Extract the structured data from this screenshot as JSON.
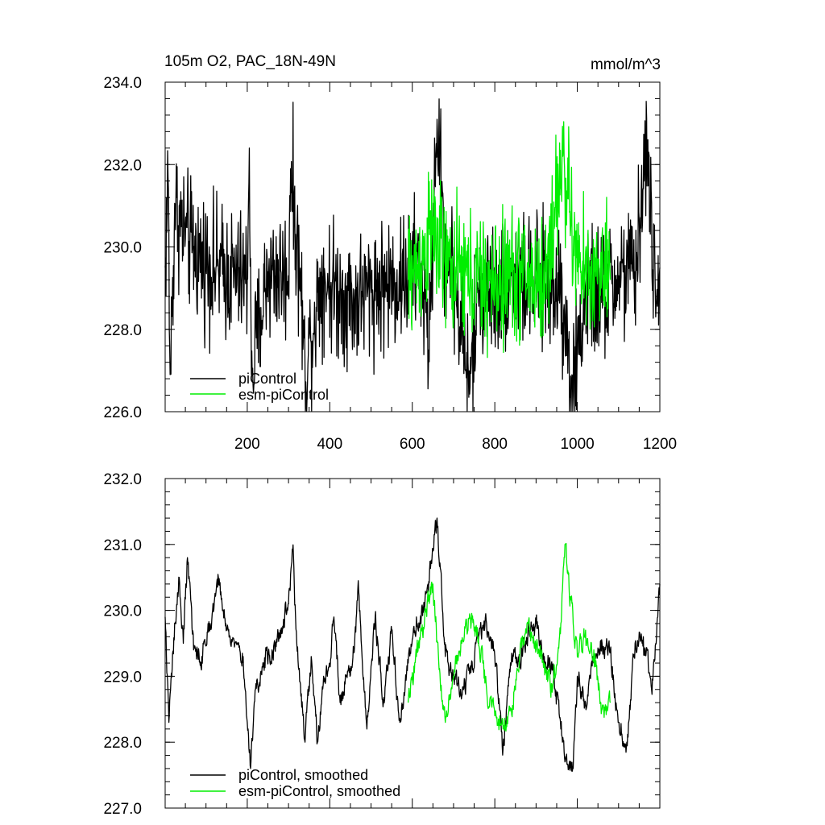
{
  "chart_data": [
    {
      "type": "line",
      "title": "105m O2, PAC_18N-49N",
      "units": "mmol/m^3",
      "xlim": [
        1,
        1200
      ],
      "ylim": [
        226.0,
        234.0
      ],
      "x_ticks": [
        200,
        400,
        600,
        800,
        1000,
        1200
      ],
      "x_tick_labels": [
        "200",
        "400",
        "600",
        "800",
        "1000",
        "1200"
      ],
      "y_ticks": [
        226.0,
        228.0,
        230.0,
        232.0,
        234.0
      ],
      "y_tick_labels": [
        "226.0",
        "228.0",
        "230.0",
        "232.0",
        "234.0"
      ],
      "legend": "bottom-left",
      "grid": false,
      "series": [
        {
          "name": "piControl",
          "color": "#000000",
          "x_start": 1,
          "x_end": 1200,
          "anchors": [
            [
              1,
              229.5
            ],
            [
              8,
              231.7
            ],
            [
              13,
              226.9
            ],
            [
              25,
              231.0
            ],
            [
              50,
              230.2
            ],
            [
              80,
              229.8
            ],
            [
              120,
              229.5
            ],
            [
              160,
              229.3
            ],
            [
              200,
              229.2
            ],
            [
              205,
              232.4
            ],
            [
              210,
              226.9
            ],
            [
              250,
              229.4
            ],
            [
              300,
              229.3
            ],
            [
              305,
              231.9
            ],
            [
              330,
              228.9
            ],
            [
              340,
              227.0
            ],
            [
              380,
              229.3
            ],
            [
              420,
              228.9
            ],
            [
              460,
              228.7
            ],
            [
              500,
              229.0
            ],
            [
              540,
              229.1
            ],
            [
              580,
              229.2
            ],
            [
              620,
              229.6
            ],
            [
              640,
              227.5
            ],
            [
              660,
              233.1
            ],
            [
              680,
              229.7
            ],
            [
              700,
              229.3
            ],
            [
              740,
              226.6
            ],
            [
              760,
              229.0
            ],
            [
              800,
              228.9
            ],
            [
              840,
              229.3
            ],
            [
              880,
              229.1
            ],
            [
              920,
              229.0
            ],
            [
              960,
              229.1
            ],
            [
              990,
              226.5
            ],
            [
              1020,
              228.9
            ],
            [
              1060,
              228.8
            ],
            [
              1100,
              229.3
            ],
            [
              1140,
              229.4
            ],
            [
              1170,
              232.6
            ],
            [
              1190,
              228.3
            ],
            [
              1200,
              229.5
            ]
          ]
        },
        {
          "name": "esm-piControl",
          "color": "#00ee00",
          "x_start": 590,
          "x_end": 1080,
          "anchors": [
            [
              590,
              229.2
            ],
            [
              620,
              229.6
            ],
            [
              650,
              230.4
            ],
            [
              680,
              229.5
            ],
            [
              720,
              229.3
            ],
            [
              760,
              229.2
            ],
            [
              800,
              229.0
            ],
            [
              840,
              229.4
            ],
            [
              880,
              229.3
            ],
            [
              920,
              229.1
            ],
            [
              965,
              232.2
            ],
            [
              1000,
              229.4
            ],
            [
              1040,
              229.4
            ],
            [
              1080,
              229.2
            ]
          ]
        }
      ]
    },
    {
      "type": "line",
      "title": "",
      "xlim": [
        1,
        1200
      ],
      "ylim": [
        227.0,
        232.0
      ],
      "x_ticks": [
        200,
        400,
        600,
        800,
        1000,
        1200
      ],
      "y_ticks": [
        227.0,
        228.0,
        229.0,
        230.0,
        231.0,
        232.0
      ],
      "y_tick_labels": [
        "227.0",
        "228.0",
        "229.0",
        "230.0",
        "231.0",
        "232.0"
      ],
      "legend": "bottom-left",
      "grid": false,
      "series": [
        {
          "name": "piControl, smoothed",
          "color": "#000000",
          "x_start": 1,
          "x_end": 1200,
          "anchors": [
            [
              1,
              229.9
            ],
            [
              10,
              228.3
            ],
            [
              25,
              229.8
            ],
            [
              35,
              230.5
            ],
            [
              45,
              229.5
            ],
            [
              55,
              230.8
            ],
            [
              70,
              229.4
            ],
            [
              90,
              229.3
            ],
            [
              110,
              229.8
            ],
            [
              130,
              230.5
            ],
            [
              150,
              229.7
            ],
            [
              170,
              229.5
            ],
            [
              190,
              229.3
            ],
            [
              200,
              228.3
            ],
            [
              208,
              227.6
            ],
            [
              220,
              228.8
            ],
            [
              240,
              229.2
            ],
            [
              260,
              229.4
            ],
            [
              280,
              229.7
            ],
            [
              300,
              230.1
            ],
            [
              310,
              230.9
            ],
            [
              320,
              229.5
            ],
            [
              330,
              228.7
            ],
            [
              340,
              228.0
            ],
            [
              355,
              229.3
            ],
            [
              370,
              228.0
            ],
            [
              385,
              229.0
            ],
            [
              400,
              229.2
            ],
            [
              410,
              229.9
            ],
            [
              425,
              228.6
            ],
            [
              440,
              229.0
            ],
            [
              455,
              229.2
            ],
            [
              470,
              230.3
            ],
            [
              490,
              228.2
            ],
            [
              510,
              229.9
            ],
            [
              530,
              228.6
            ],
            [
              550,
              229.7
            ],
            [
              570,
              228.3
            ],
            [
              590,
              229.2
            ],
            [
              610,
              229.9
            ],
            [
              630,
              230.0
            ],
            [
              650,
              230.9
            ],
            [
              660,
              231.4
            ],
            [
              680,
              229.3
            ],
            [
              700,
              229.0
            ],
            [
              720,
              228.7
            ],
            [
              740,
              229.1
            ],
            [
              760,
              229.5
            ],
            [
              780,
              229.8
            ],
            [
              800,
              229.3
            ],
            [
              820,
              227.9
            ],
            [
              840,
              229.2
            ],
            [
              860,
              229.3
            ],
            [
              880,
              229.6
            ],
            [
              900,
              229.8
            ],
            [
              920,
              229.3
            ],
            [
              940,
              229.1
            ],
            [
              960,
              228.2
            ],
            [
              970,
              227.7
            ],
            [
              990,
              227.6
            ],
            [
              1000,
              229.0
            ],
            [
              1020,
              228.6
            ],
            [
              1040,
              229.2
            ],
            [
              1060,
              229.5
            ],
            [
              1080,
              229.4
            ],
            [
              1100,
              228.3
            ],
            [
              1120,
              228.0
            ],
            [
              1140,
              229.5
            ],
            [
              1160,
              229.6
            ],
            [
              1180,
              228.8
            ],
            [
              1195,
              229.9
            ],
            [
              1200,
              230.4
            ]
          ]
        },
        {
          "name": "esm-piControl, smoothed",
          "color": "#00ee00",
          "x_start": 590,
          "x_end": 1080,
          "anchors": [
            [
              590,
              228.6
            ],
            [
              610,
              229.3
            ],
            [
              630,
              229.9
            ],
            [
              650,
              230.4
            ],
            [
              665,
              229.1
            ],
            [
              680,
              228.3
            ],
            [
              700,
              229.0
            ],
            [
              720,
              229.5
            ],
            [
              740,
              229.9
            ],
            [
              760,
              229.6
            ],
            [
              780,
              228.8
            ],
            [
              800,
              228.4
            ],
            [
              820,
              228.2
            ],
            [
              840,
              228.5
            ],
            [
              860,
              229.3
            ],
            [
              880,
              229.8
            ],
            [
              900,
              229.4
            ],
            [
              920,
              229.2
            ],
            [
              940,
              228.8
            ],
            [
              960,
              229.8
            ],
            [
              970,
              231.0
            ],
            [
              990,
              229.8
            ],
            [
              1000,
              229.3
            ],
            [
              1020,
              229.7
            ],
            [
              1040,
              229.4
            ],
            [
              1060,
              228.5
            ],
            [
              1080,
              228.6
            ]
          ]
        }
      ]
    }
  ]
}
